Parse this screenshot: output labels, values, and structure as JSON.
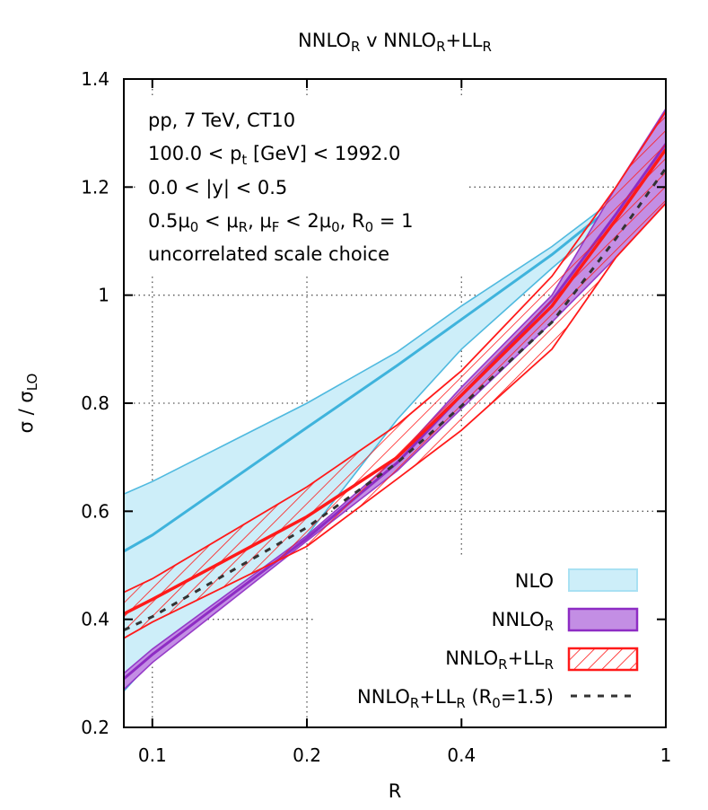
{
  "chart_data": {
    "type": "area",
    "title": "NNLO_R v NNLO_R+LL_R",
    "xlabel": "R",
    "ylabel": "σ / σ_LO",
    "x_scale": "log",
    "xlim": [
      0.088,
      1.0
    ],
    "ylim": [
      0.2,
      1.4
    ],
    "xticks": [
      {
        "value": 0.1,
        "label": "0.1"
      },
      {
        "value": 0.2,
        "label": "0.2"
      },
      {
        "value": 0.4,
        "label": "0.4"
      },
      {
        "value": 1.0,
        "label": "1"
      }
    ],
    "yticks": [
      {
        "value": 0.2,
        "label": "0.2"
      },
      {
        "value": 0.4,
        "label": "0.4"
      },
      {
        "value": 0.6,
        "label": "0.6"
      },
      {
        "value": 0.8,
        "label": "0.8"
      },
      {
        "value": 1.0,
        "label": "1"
      },
      {
        "value": 1.2,
        "label": "1.2"
      },
      {
        "value": 1.4,
        "label": "1.4"
      }
    ],
    "annotations": [
      "pp, 7 TeV, CT10",
      "100.0 < p_t [GeV] < 1992.0",
      "0.0 < |y| < 0.5",
      "0.5μ_0 < μ_R, μ_F < 2μ_0, R_0 = 1",
      "uncorrelated scale choice"
    ],
    "legend_position": "bottom-right",
    "series": [
      {
        "name": "NLO",
        "style": "band",
        "color": "#3fb3dc",
        "fill": "#cdeef9",
        "x": [
          0.088,
          0.1,
          0.2,
          0.3,
          0.4,
          0.6,
          0.8,
          1.0
        ],
        "central": [
          0.526,
          0.556,
          0.755,
          0.87,
          0.955,
          1.075,
          1.17,
          1.25
        ],
        "upper": [
          0.632,
          0.655,
          0.8,
          0.895,
          0.98,
          1.09,
          1.18,
          1.26
        ],
        "lower": [
          0.267,
          0.325,
          0.555,
          0.77,
          0.9,
          1.05,
          1.15,
          1.24
        ]
      },
      {
        "name": "NNLO_R",
        "style": "band",
        "color": "#8e2cc4",
        "fill": "#c38ee4",
        "x": [
          0.088,
          0.1,
          0.2,
          0.3,
          0.4,
          0.6,
          0.8,
          1.0
        ],
        "central": [
          0.29,
          0.335,
          0.55,
          0.69,
          0.815,
          0.99,
          1.15,
          1.28
        ],
        "upper": [
          0.3,
          0.345,
          0.555,
          0.7,
          0.83,
          1.0,
          1.2,
          1.345
        ],
        "lower": [
          0.27,
          0.32,
          0.545,
          0.675,
          0.79,
          0.95,
          1.07,
          1.17
        ]
      },
      {
        "name": "NNLO_R+LL_R",
        "style": "hatched-band",
        "color": "#ff1a1a",
        "x": [
          0.088,
          0.1,
          0.2,
          0.3,
          0.4,
          0.6,
          0.8,
          1.0
        ],
        "central": [
          0.41,
          0.437,
          0.59,
          0.7,
          0.815,
          0.98,
          1.14,
          1.27
        ],
        "upper": [
          0.45,
          0.475,
          0.645,
          0.76,
          0.86,
          1.035,
          1.2,
          1.34
        ],
        "lower": [
          0.365,
          0.395,
          0.535,
          0.66,
          0.75,
          0.9,
          1.07,
          1.17
        ]
      },
      {
        "name": "NNLO_R+LL_R (R_0=1.5)",
        "style": "dashed",
        "color": "#333333",
        "x": [
          0.088,
          0.1,
          0.2,
          0.3,
          0.4,
          0.6,
          0.8,
          1.0
        ],
        "central": [
          0.38,
          0.405,
          0.57,
          0.69,
          0.795,
          0.95,
          1.105,
          1.235
        ]
      }
    ]
  },
  "legend": [
    {
      "label": "NLO"
    },
    {
      "label": "NNLO_R"
    },
    {
      "label": "NNLO_R+LL_R"
    },
    {
      "label": "NNLO_R+LL_R (R_0=1.5)"
    }
  ],
  "colors": {
    "nlo_line": "#3fb3dc",
    "nlo_fill": "#cdeef9",
    "nnlo_line": "#8e2cc4",
    "nnlo_fill": "#c38ee4",
    "resum_line": "#ff1a1a",
    "dashed_line": "#333333"
  }
}
